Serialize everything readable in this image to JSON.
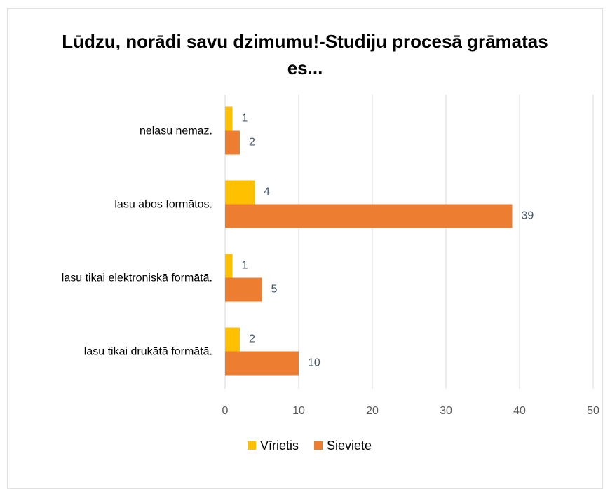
{
  "chart_data": {
    "type": "barh",
    "title": "Lūdzu, norādi savu dzimumu!-Studiju procesā grāmatas es...",
    "categories": [
      "nelasu nemaz.",
      "lasu abos formātos.",
      "lasu tikai elektroniskā formātā.",
      "lasu tikai drukātā formātā."
    ],
    "series": [
      {
        "name": "Vīrietis",
        "color": "#ffc000",
        "values": [
          1,
          4,
          1,
          2
        ]
      },
      {
        "name": "Sieviete",
        "color": "#ed7d31",
        "values": [
          2,
          39,
          5,
          10
        ]
      }
    ],
    "xlim": [
      0,
      50
    ],
    "xticks": [
      0,
      10,
      20,
      30,
      40,
      50
    ],
    "grid": true,
    "legend": "bottom"
  }
}
